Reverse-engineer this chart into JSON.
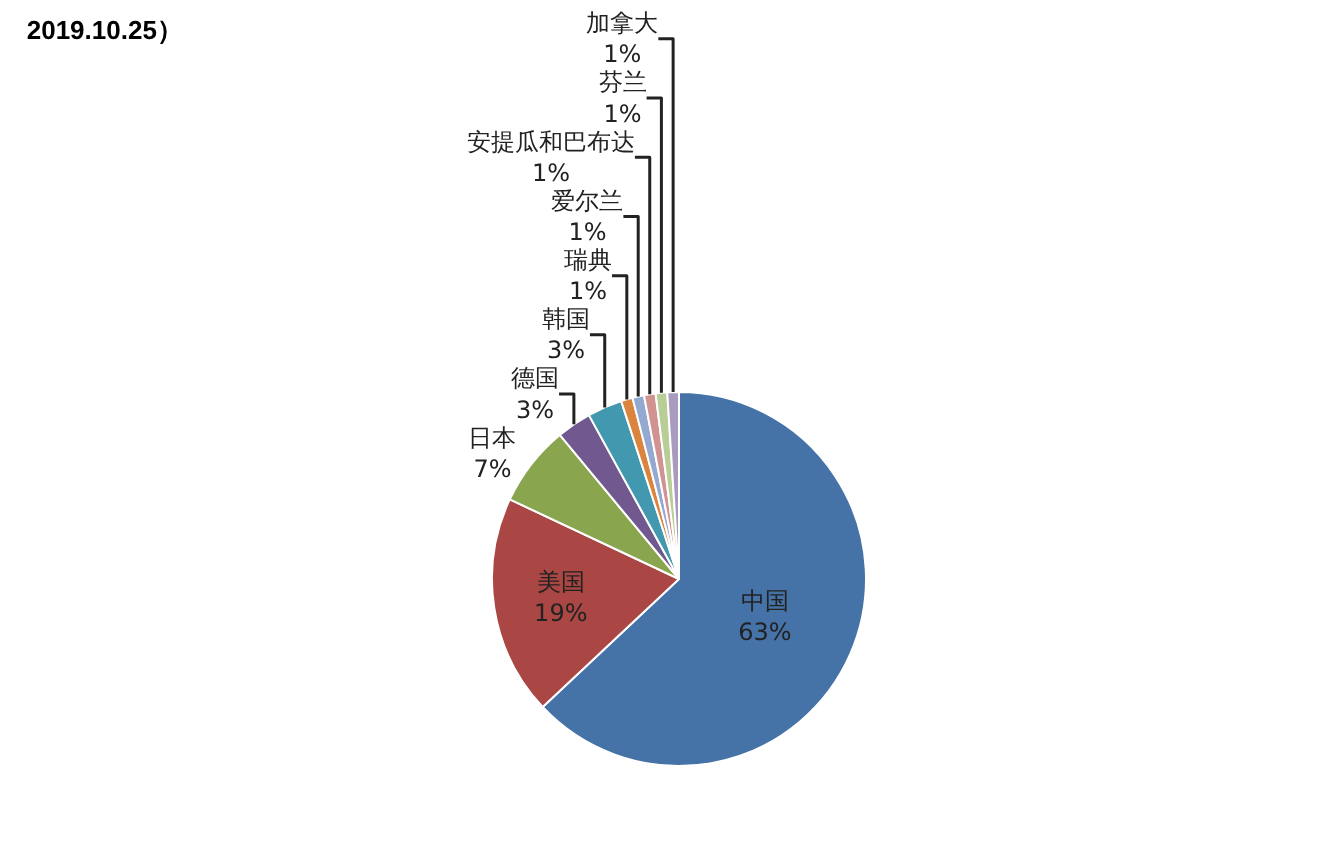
{
  "chart_data": {
    "type": "pie",
    "title": "2019.10.25）",
    "categories": [
      "中国",
      "美国",
      "日本",
      "德国",
      "韩国",
      "瑞典",
      "爱尔兰",
      "安提瓜和巴布达",
      "芬兰",
      "加拿大"
    ],
    "values": [
      63,
      19,
      7,
      3,
      3,
      1,
      1,
      1,
      1,
      1
    ],
    "value_labels": [
      "63%",
      "19%",
      "7%",
      "3%",
      "3%",
      "1%",
      "1%",
      "1%",
      "1%",
      "1%"
    ],
    "colors": [
      "#4572a7",
      "#aa4643",
      "#89a54e",
      "#71588f",
      "#4198af",
      "#db843d",
      "#93a9cf",
      "#d19392",
      "#b9cd96",
      "#a99bbd"
    ],
    "legend": false
  }
}
